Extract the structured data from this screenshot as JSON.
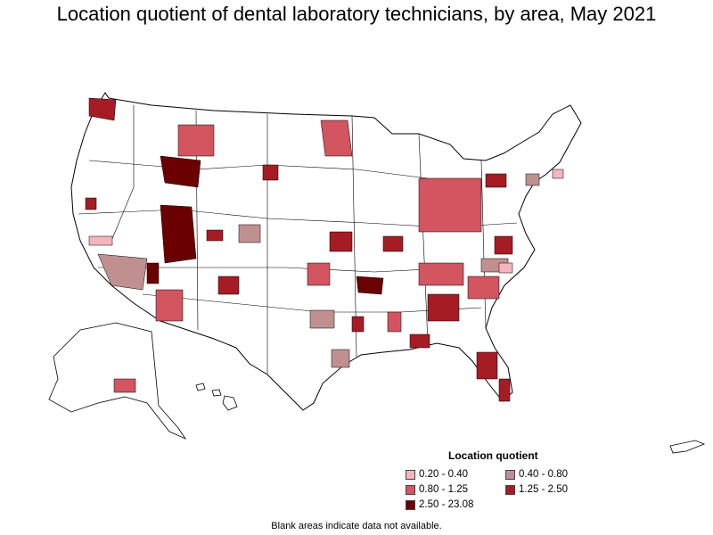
{
  "title": "Location quotient of dental laboratory technicians, by area, May 2021",
  "legend": {
    "title": "Location quotient",
    "items": [
      {
        "label": "0.20 - 0.40",
        "color": "#f4b6bd"
      },
      {
        "label": "0.40 - 0.80",
        "color": "#c09090"
      },
      {
        "label": "0.80 - 1.25",
        "color": "#d2555f"
      },
      {
        "label": "1.25 - 2.50",
        "color": "#a51c24"
      },
      {
        "label": "2.50 - 23.08",
        "color": "#6b0000"
      }
    ]
  },
  "footnote": "Blank areas indicate data not available.",
  "colors": {
    "no_data": "#ffffff",
    "boundary": "#000000"
  }
}
